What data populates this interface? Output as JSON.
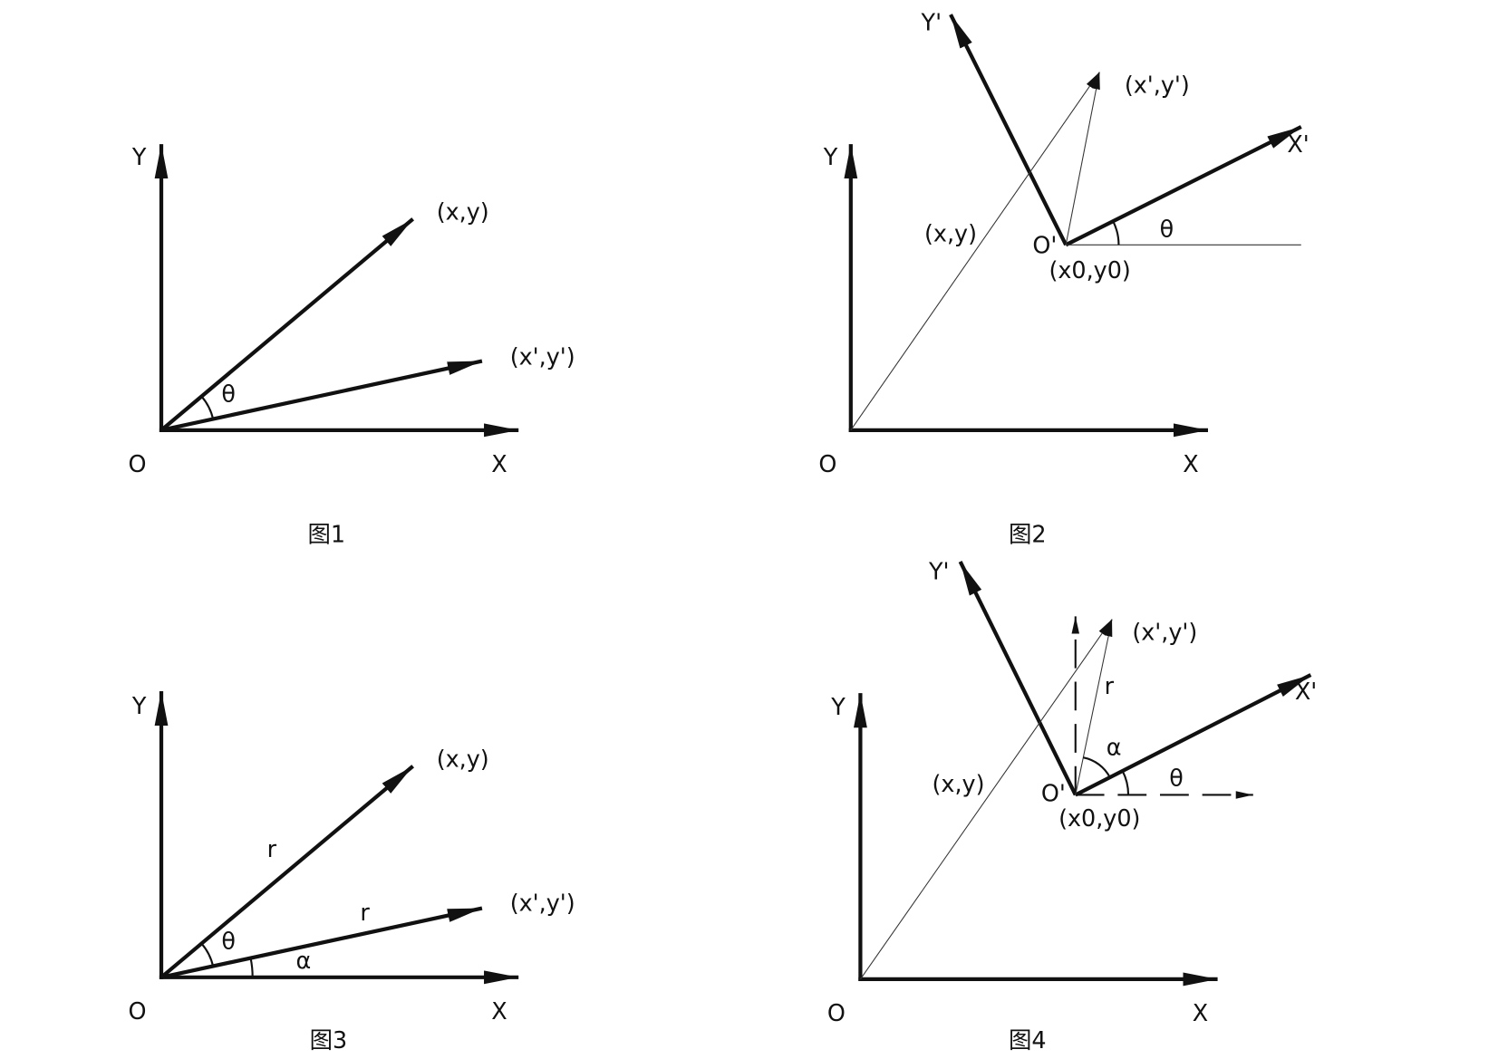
{
  "figures": [
    {
      "caption": "图1",
      "labels": [
        "Y",
        "(x,y)",
        "(x',y')",
        "θ",
        "O",
        "X"
      ]
    },
    {
      "caption": "图2",
      "labels": [
        "Y'",
        "(x',y')",
        "X'",
        "Y",
        "(x,y)",
        "O'",
        "θ",
        "(x0,y0)",
        "O",
        "X"
      ]
    },
    {
      "caption": "图3",
      "labels": [
        "Y",
        "(x,y)",
        "r",
        "r",
        "(x',y')",
        "θ",
        "α",
        "O",
        "X"
      ]
    },
    {
      "caption": "图4",
      "labels": [
        "Y'",
        "(x',y')",
        "r",
        "X'",
        "Y",
        "α",
        "(x,y)",
        "O'",
        "θ",
        "(x0,y0)",
        "O",
        "X"
      ]
    }
  ]
}
